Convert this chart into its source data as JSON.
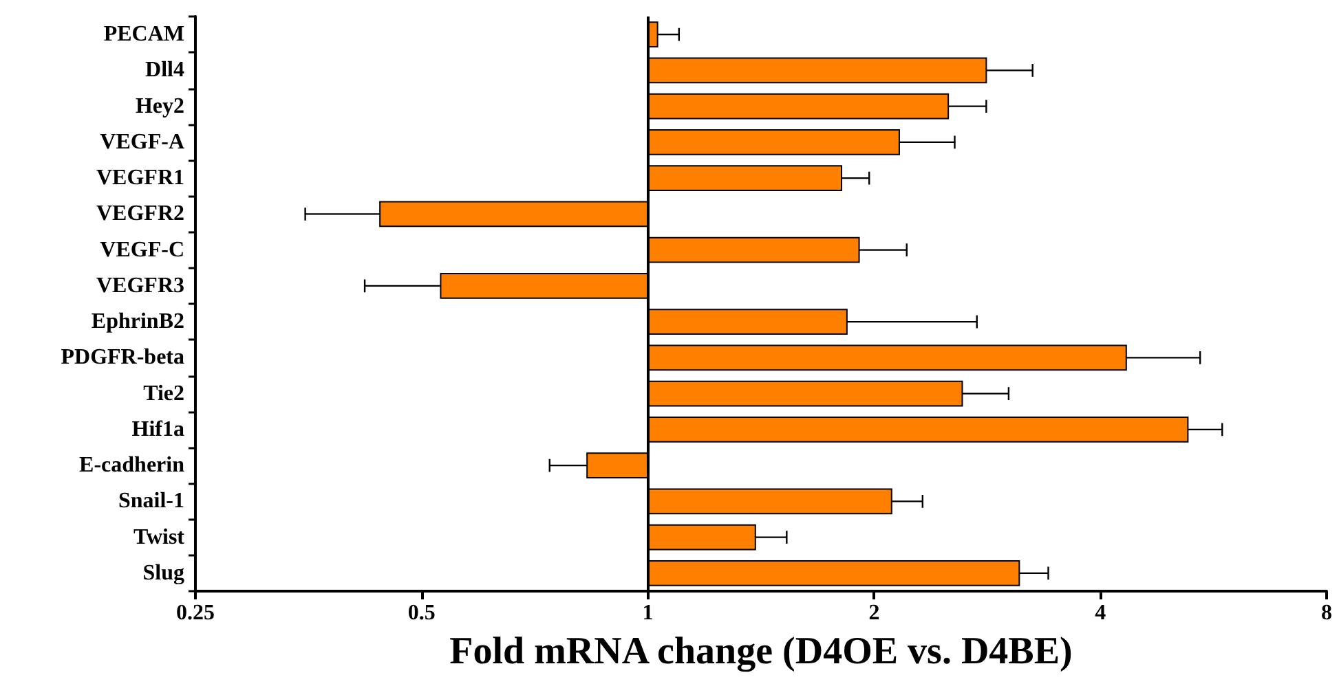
{
  "chart_data": {
    "type": "bar",
    "orientation": "horizontal",
    "xlabel": "Fold mRNA change (D4OE vs. D4BE)",
    "categories": [
      "PECAM",
      "Dll4",
      "Hey2",
      "VEGF-A",
      "VEGFR1",
      "VEGFR2",
      "VEGF-C",
      "VEGFR3",
      "EphrinB2",
      "PDGFR-beta",
      "Tie2",
      "Hif1a",
      "E-cadherin",
      "Snail-1",
      "Twist",
      "Slug"
    ],
    "base": [
      1,
      1,
      1,
      1,
      1,
      1,
      1,
      1,
      1,
      1,
      1,
      1,
      1,
      1,
      1,
      1
    ],
    "values": [
      0.03,
      1.82,
      1.51,
      1.16,
      0.81,
      -0.56,
      0.91,
      -0.47,
      0.84,
      3.33,
      1.62,
      4.23,
      -0.17,
      1.11,
      0.39,
      2.12
    ],
    "errors": [
      [
        1.03,
        1.1
      ],
      [
        2.82,
        3.25
      ],
      [
        2.51,
        2.82
      ],
      [
        2.16,
        2.56
      ],
      [
        1.81,
        1.97
      ],
      [
        0.35,
        0.44
      ],
      [
        1.91,
        2.21
      ],
      [
        0.42,
        0.53
      ],
      [
        1.84,
        2.74
      ],
      [
        4.33,
        5.43
      ],
      [
        2.62,
        3.02
      ],
      [
        5.23,
        5.81
      ],
      [
        0.74,
        0.83
      ],
      [
        2.11,
        2.32
      ],
      [
        1.39,
        1.53
      ],
      [
        3.12,
        3.41
      ]
    ],
    "color": "#ff8000",
    "log": "x",
    "xlim": [
      0.25,
      8
    ],
    "xticks": [
      0.25,
      0.5,
      1,
      2,
      4,
      8
    ],
    "ref_lines": [
      {
        "axis": "x",
        "value": 1,
        "color": "#000000"
      }
    ],
    "grid": false
  }
}
